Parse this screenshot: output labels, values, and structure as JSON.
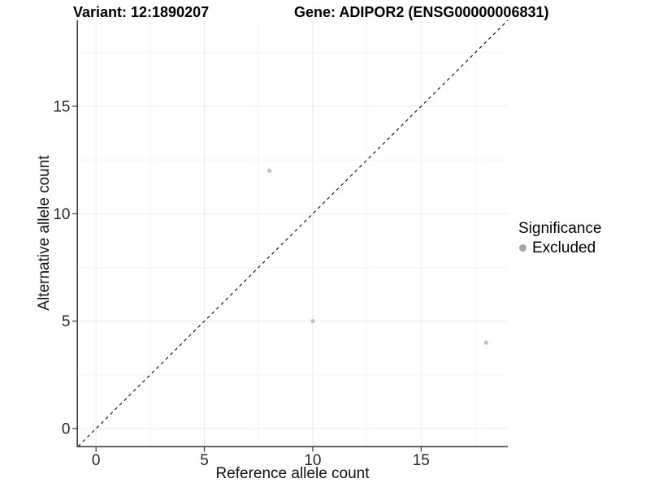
{
  "chart_data": {
    "type": "scatter",
    "titles": {
      "left": "Variant: 12:1890207",
      "right": "Gene: ADIPOR2 (ENSG00000006831)"
    },
    "xlabel": "Reference allele count",
    "ylabel": "Alternative allele count",
    "xlim": [
      -0.85,
      19.0
    ],
    "ylim": [
      -0.83,
      19.0
    ],
    "xticks": [
      0,
      5,
      10,
      15
    ],
    "yticks": [
      0,
      5,
      10,
      15
    ],
    "xminor": [
      2.5,
      7.5,
      12.5,
      17.5
    ],
    "yminor": [
      2.5,
      7.5,
      12.5,
      17.5
    ],
    "grid": {
      "major_color": "#eaeaea",
      "minor_color": "#f4f4f4"
    },
    "axis_color": "#404040",
    "tick_color": "#333333",
    "reference_line": {
      "type": "identity",
      "style": "dashed",
      "color": "#1a1a1a"
    },
    "series": [
      {
        "name": "Excluded",
        "color": "#c3c3c3",
        "points": [
          {
            "x": 8,
            "y": 12
          },
          {
            "x": 10,
            "y": 5
          },
          {
            "x": 18,
            "y": 4
          }
        ]
      }
    ],
    "legend": {
      "title": "Significance",
      "position": "right",
      "entries": [
        {
          "label": "Excluded",
          "color": "#a6a6a6"
        }
      ]
    }
  }
}
